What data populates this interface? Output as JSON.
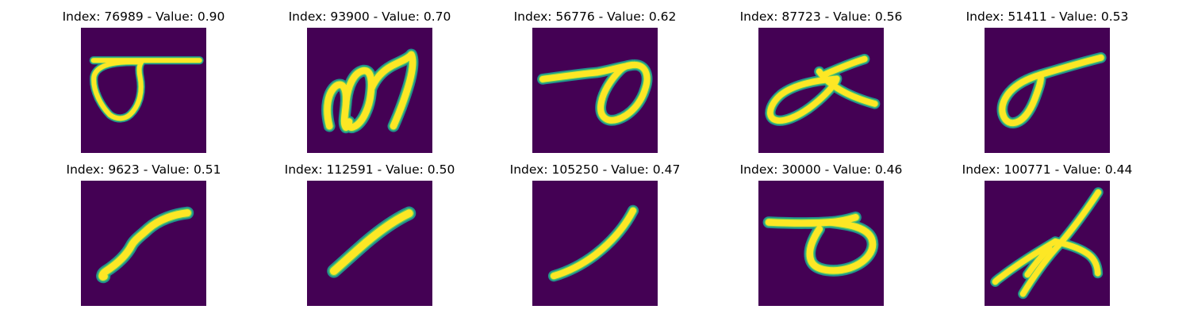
{
  "colors": {
    "background": "#440154",
    "stroke_edge": "#21918c",
    "stroke_mid": "#5ec962",
    "stroke_core": "#fde725"
  },
  "panels": [
    {
      "title": "Index: 76989 - Value: 0.90",
      "index": 76989,
      "value": 0.9
    },
    {
      "title": "Index: 93900 - Value: 0.70",
      "index": 93900,
      "value": 0.7
    },
    {
      "title": "Index: 56776 - Value: 0.62",
      "index": 56776,
      "value": 0.62
    },
    {
      "title": "Index: 87723 - Value: 0.56",
      "index": 87723,
      "value": 0.56
    },
    {
      "title": "Index: 51411 - Value: 0.53",
      "index": 51411,
      "value": 0.53
    },
    {
      "title": "Index: 9623 - Value: 0.51",
      "index": 9623,
      "value": 0.51
    },
    {
      "title": "Index: 112591 - Value: 0.50",
      "index": 112591,
      "value": 0.5
    },
    {
      "title": "Index: 105250 - Value: 0.47",
      "index": 105250,
      "value": 0.47
    },
    {
      "title": "Index: 30000 - Value: 0.46",
      "index": 30000,
      "value": 0.46
    },
    {
      "title": "Index: 100771 - Value: 0.44",
      "index": 100771,
      "value": 0.44
    }
  ]
}
